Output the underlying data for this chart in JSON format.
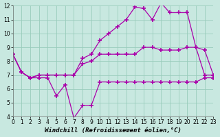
{
  "background_color": "#c8e8e0",
  "grid_color": "#99ccbb",
  "line_color": "#aa00aa",
  "marker": "+",
  "markersize": 4,
  "markeredgewidth": 1.2,
  "linewidth": 0.9,
  "xlim": [
    0,
    23
  ],
  "ylim": [
    4,
    12
  ],
  "yticks": [
    4,
    5,
    6,
    7,
    8,
    9,
    10,
    11,
    12
  ],
  "xticks": [
    0,
    1,
    2,
    3,
    4,
    5,
    6,
    7,
    8,
    9,
    10,
    11,
    12,
    13,
    14,
    15,
    16,
    17,
    18,
    19,
    20,
    21,
    22,
    23
  ],
  "xlabel": "Windchill (Refroidissement éolien,°C)",
  "xlabel_fontsize": 6.5,
  "tick_fontsize": 5.5,
  "series1_x": [
    0,
    1,
    2,
    3,
    4,
    5,
    6,
    7,
    8,
    9,
    10,
    11,
    12,
    13,
    14,
    15,
    16,
    17,
    18,
    19,
    20,
    21,
    22,
    23
  ],
  "series1_y": [
    8.5,
    7.2,
    6.8,
    6.8,
    6.8,
    5.5,
    6.3,
    3.9,
    4.8,
    4.8,
    6.5,
    6.5,
    6.5,
    6.5,
    6.5,
    6.5,
    6.5,
    6.5,
    6.5,
    6.5,
    6.5,
    6.5,
    6.8,
    6.8
  ],
  "series2_x": [
    0,
    1,
    2,
    3,
    4,
    5,
    6,
    7,
    8,
    9,
    10,
    11,
    12,
    13,
    14,
    15,
    16,
    17,
    18,
    19,
    20,
    21,
    22,
    23
  ],
  "series2_y": [
    8.5,
    7.2,
    6.8,
    7.0,
    7.0,
    7.0,
    7.0,
    7.0,
    8.2,
    8.5,
    9.5,
    10.0,
    10.5,
    11.0,
    11.9,
    11.8,
    11.0,
    12.2,
    11.5,
    11.5,
    11.5,
    9.0,
    7.0,
    7.0
  ],
  "series3_x": [
    0,
    1,
    2,
    3,
    4,
    5,
    6,
    7,
    8,
    9,
    10,
    11,
    12,
    13,
    14,
    15,
    16,
    17,
    18,
    19,
    20,
    21,
    22,
    23
  ],
  "series3_y": [
    8.5,
    7.2,
    6.8,
    7.0,
    7.0,
    7.0,
    7.0,
    7.0,
    7.8,
    8.0,
    8.5,
    8.5,
    8.5,
    8.5,
    8.5,
    9.0,
    9.0,
    8.8,
    8.8,
    8.8,
    9.0,
    9.0,
    8.8,
    7.0
  ]
}
